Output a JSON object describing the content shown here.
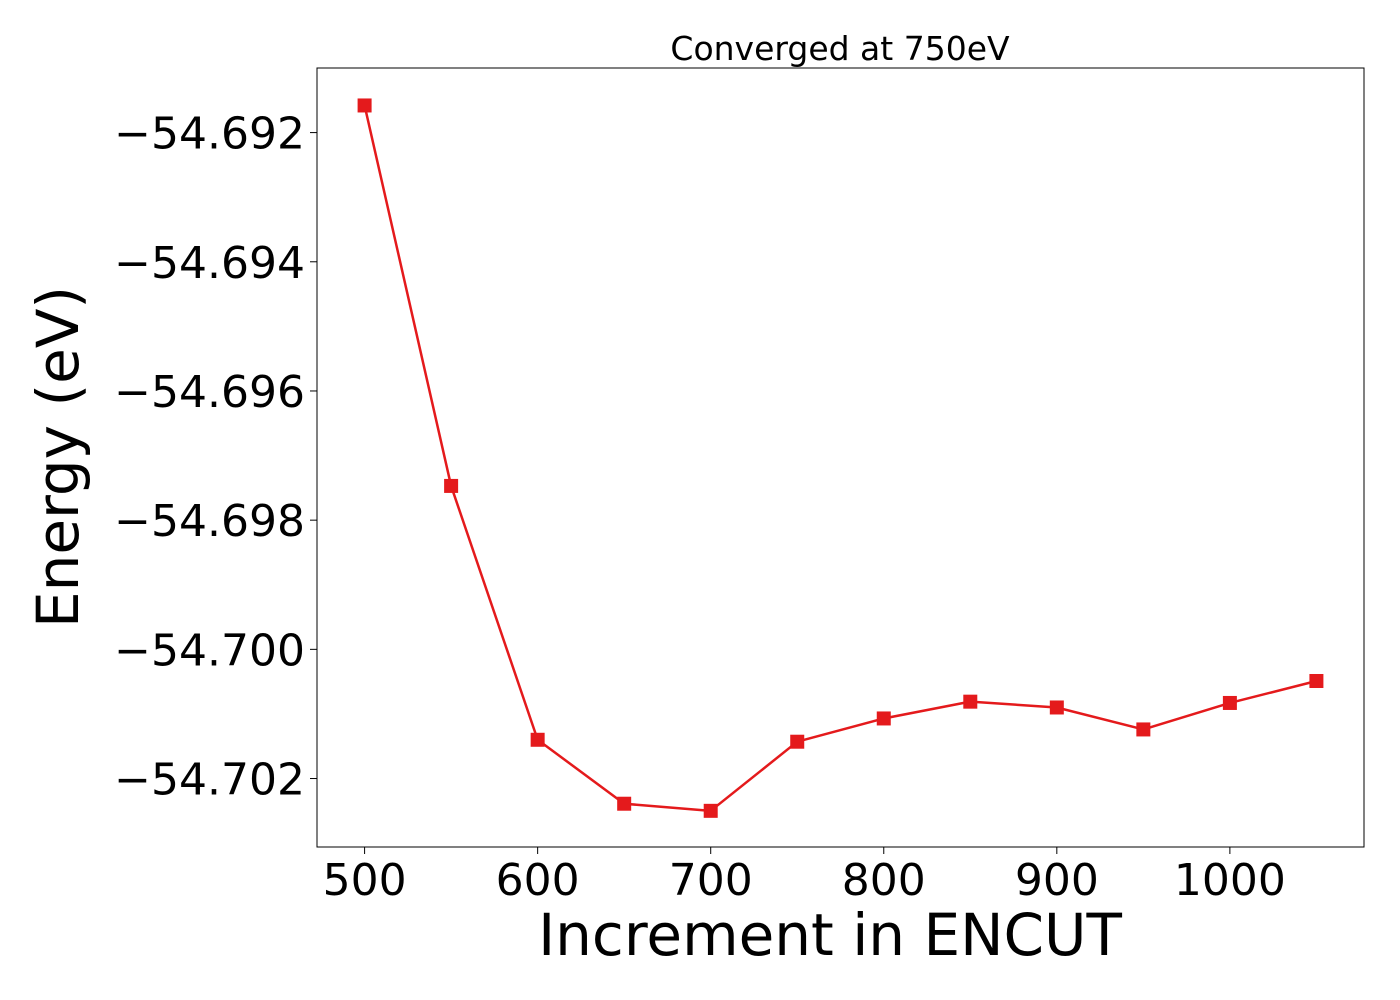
{
  "colors": {
    "series": "#e41a1c",
    "frame": "#000000",
    "background": "#ffffff"
  },
  "chart_data": {
    "type": "line",
    "title": "Converged at 750eV",
    "xlabel": "Increment in ENCUT",
    "ylabel": "Energy (eV)",
    "x": [
      500,
      550,
      600,
      650,
      700,
      750,
      800,
      850,
      900,
      950,
      1000,
      1050
    ],
    "series": [
      {
        "marker": "square",
        "color": "#e41a1c",
        "values": [
          -54.69158,
          -54.69747,
          -54.7014,
          -54.70239,
          -54.7025,
          -54.70143,
          -54.70107,
          -54.70081,
          -54.7009,
          -54.70124,
          -54.70083,
          -54.70049
        ]
      }
    ],
    "xlim": [
      472.5,
      1077.5
    ],
    "ylim": [
      -54.70306,
      -54.691
    ],
    "xticks": [
      500,
      600,
      700,
      800,
      900,
      1000
    ],
    "xtick_labels": [
      "500",
      "600",
      "700",
      "800",
      "900",
      "1000"
    ],
    "yticks": [
      -54.692,
      -54.694,
      -54.696,
      -54.698,
      -54.7,
      -54.702
    ],
    "ytick_labels": [
      "−54.692",
      "−54.694",
      "−54.696",
      "−54.698",
      "−54.700",
      "−54.702"
    ],
    "grid": false,
    "legend": "none"
  }
}
